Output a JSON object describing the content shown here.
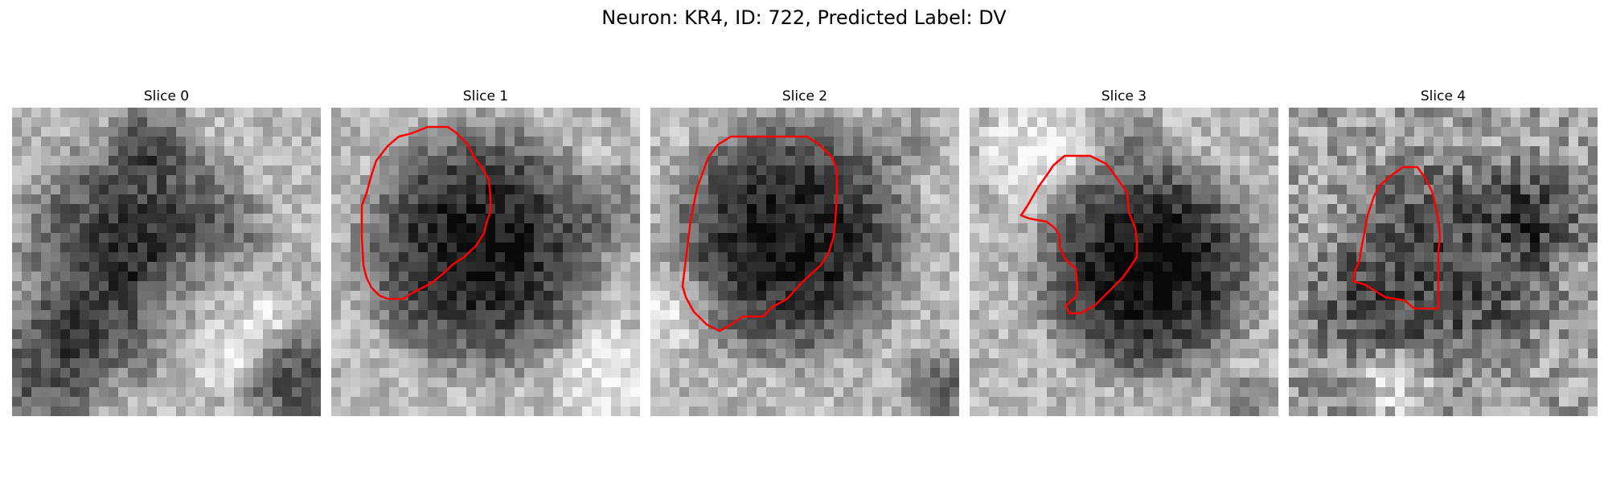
{
  "figure": {
    "title": "Neuron: KR4, ID: 722, Predicted Label: DV"
  },
  "panels": [
    {
      "title": "Slice 0",
      "has_contour": false
    },
    {
      "title": "Slice 1",
      "has_contour": true
    },
    {
      "title": "Slice 2",
      "has_contour": true
    },
    {
      "title": "Slice 3",
      "has_contour": true
    },
    {
      "title": "Slice 4",
      "has_contour": true
    }
  ],
  "style": {
    "contour_color": "#ff0000",
    "colormap": "grayscale"
  }
}
